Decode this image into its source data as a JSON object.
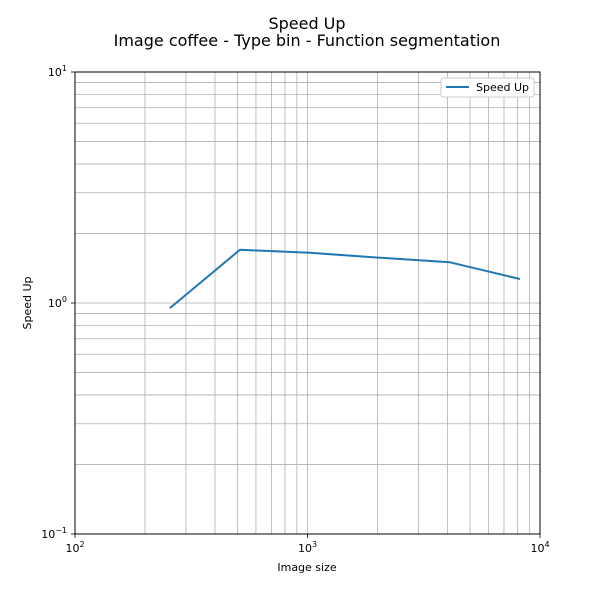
{
  "chart_data": {
    "type": "line",
    "title": "Speed Up",
    "subtitle": "Image coffee - Type bin - Function segmentation",
    "xlabel": "Image size",
    "ylabel": "Speed Up",
    "xscale": "log",
    "yscale": "log",
    "xlim": [
      100,
      10000
    ],
    "ylim": [
      0.1,
      10
    ],
    "grid": true,
    "legend_position": "top-right",
    "x_ticks": [
      {
        "value": 100,
        "base": "10",
        "exp": "2"
      },
      {
        "value": 1000,
        "base": "10",
        "exp": "3"
      },
      {
        "value": 10000,
        "base": "10",
        "exp": "4"
      }
    ],
    "y_ticks": [
      {
        "value": 0.1,
        "base": "10",
        "exp": "−1"
      },
      {
        "value": 1,
        "base": "10",
        "exp": "0"
      },
      {
        "value": 10,
        "base": "10",
        "exp": "1"
      }
    ],
    "series": [
      {
        "name": "Speed Up",
        "color": "#1f77b4",
        "x": [
          256,
          512,
          1024,
          2048,
          4096,
          8192
        ],
        "y": [
          0.95,
          1.7,
          1.65,
          1.57,
          1.5,
          1.27
        ]
      }
    ]
  }
}
